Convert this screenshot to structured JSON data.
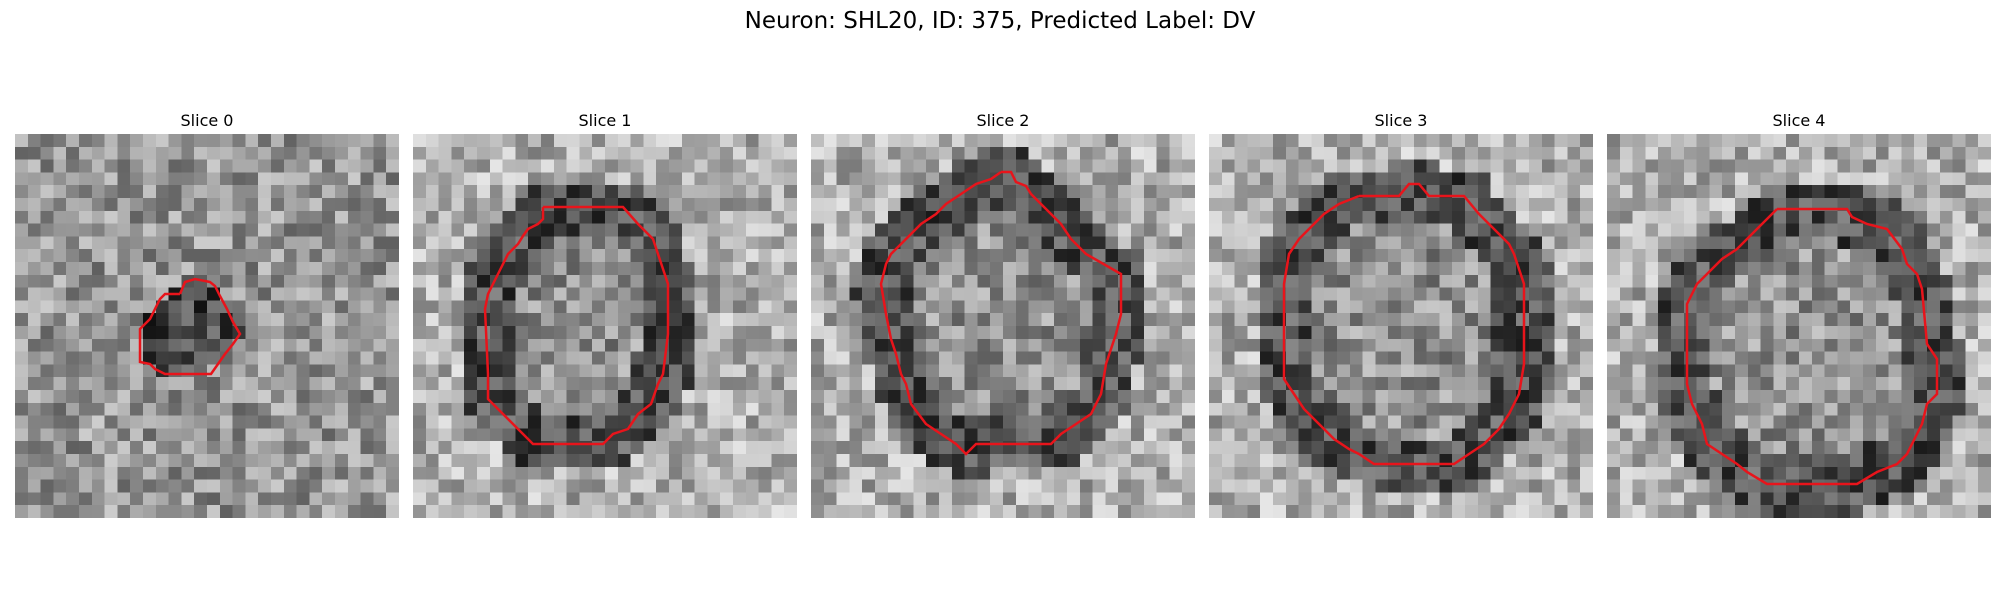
{
  "figure": {
    "title": "Neuron: SHL20, ID: 375, Predicted Label: DV"
  },
  "panels": [
    {
      "label": "Slice 0",
      "outline_color": "#e8141b",
      "seed": 11
    },
    {
      "label": "Slice 1",
      "outline_color": "#e8141b",
      "seed": 23
    },
    {
      "label": "Slice 2",
      "outline_color": "#e8141b",
      "seed": 37
    },
    {
      "label": "Slice 3",
      "outline_color": "#e8141b",
      "seed": 41
    },
    {
      "label": "Slice 4",
      "outline_color": "#e8141b",
      "seed": 59
    }
  ]
}
